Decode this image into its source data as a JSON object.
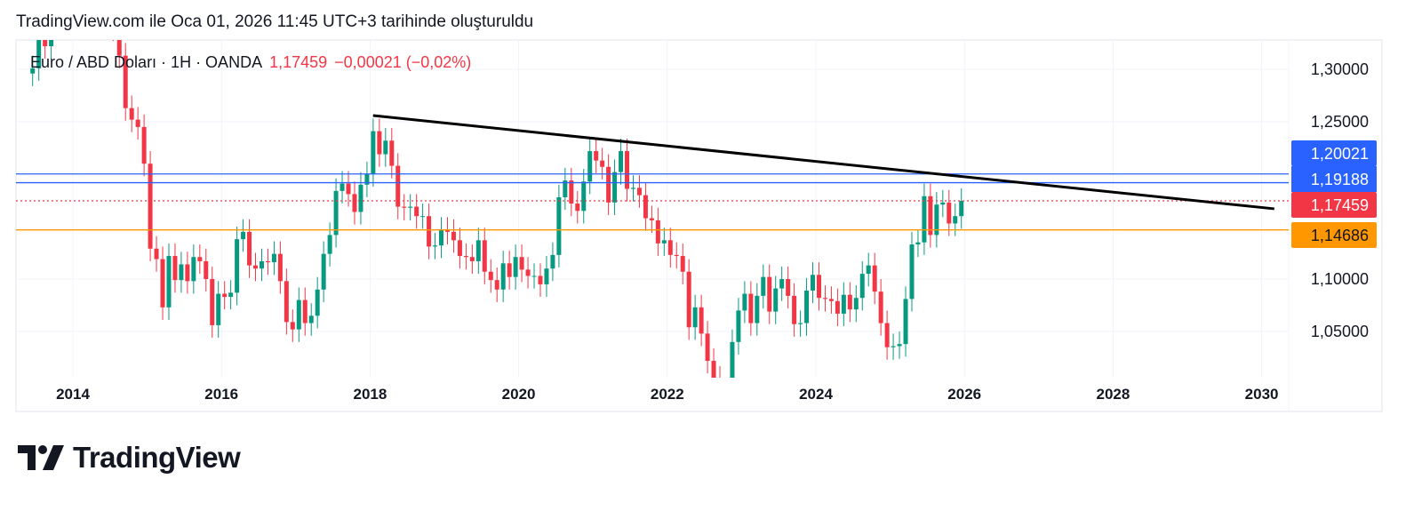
{
  "header": {
    "created_text": "TradingView.com ile Oca 01, 2026 11:45 UTC+3 tarihinde oluşturuldu"
  },
  "legend": {
    "symbol": "Euro / ABD Doları · 1H · OANDA",
    "last": "1,17459",
    "change": "−0,00021 (−0,02%)"
  },
  "logo": {
    "text": "TradingView"
  },
  "colors": {
    "up": "#089981",
    "down": "#f23645",
    "blue_line": "#2962ff",
    "orange_line": "#ff9800",
    "trendline": "#000000",
    "last_price": "#f23645"
  },
  "chart_data": {
    "type": "candlestick",
    "x_ticks": [
      "2014",
      "2016",
      "2018",
      "2020",
      "2022",
      "2024",
      "2026",
      "2028",
      "2030"
    ],
    "y_ticks": [
      "1,30000",
      "1,25000",
      "1,10000",
      "1,05000"
    ],
    "y_tick_values": [
      1.3,
      1.25,
      1.1,
      1.05
    ],
    "ylim": [
      1.01,
      1.328
    ],
    "xlim": [
      "2013-04",
      "2030-06"
    ],
    "grid": true,
    "start_month": "2013-06",
    "monthly_close": [
      1.301,
      1.33,
      1.322,
      1.352,
      1.358,
      1.359,
      1.375,
      1.349,
      1.38,
      1.377,
      1.387,
      1.363,
      1.369,
      1.339,
      1.313,
      1.263,
      1.252,
      1.245,
      1.21,
      1.129,
      1.119,
      1.073,
      1.122,
      1.099,
      1.114,
      1.098,
      1.121,
      1.117,
      1.1,
      1.056,
      1.086,
      1.083,
      1.087,
      1.138,
      1.145,
      1.113,
      1.11,
      1.117,
      1.116,
      1.124,
      1.098,
      1.059,
      1.052,
      1.08,
      1.058,
      1.065,
      1.09,
      1.124,
      1.142,
      1.184,
      1.191,
      1.181,
      1.164,
      1.19,
      1.2,
      1.241,
      1.219,
      1.232,
      1.208,
      1.169,
      1.168,
      1.169,
      1.16,
      1.16,
      1.131,
      1.132,
      1.147,
      1.145,
      1.137,
      1.122,
      1.121,
      1.117,
      1.137,
      1.107,
      1.099,
      1.09,
      1.115,
      1.102,
      1.121,
      1.109,
      1.103,
      1.103,
      1.095,
      1.11,
      1.123,
      1.178,
      1.194,
      1.172,
      1.165,
      1.193,
      1.222,
      1.213,
      1.207,
      1.173,
      1.202,
      1.222,
      1.186,
      1.187,
      1.18,
      1.158,
      1.156,
      1.134,
      1.137,
      1.123,
      1.122,
      1.107,
      1.054,
      1.073,
      1.048,
      1.022,
      1.005,
      0.98,
      0.988,
      1.04,
      1.07,
      1.086,
      1.058,
      1.084,
      1.102,
      1.069,
      1.091,
      1.1,
      1.084,
      1.057,
      1.058,
      1.089,
      1.104,
      1.082,
      1.081,
      1.079,
      1.067,
      1.085,
      1.071,
      1.082,
      1.105,
      1.113,
      1.088,
      1.058,
      1.035,
      1.036,
      1.038,
      1.081,
      1.133,
      1.135,
      1.179,
      1.142,
      1.171,
      1.173,
      1.153,
      1.16,
      1.17459
    ],
    "horizontal_lines": [
      {
        "price": 1.20021,
        "label": "1,20021",
        "color": "#2962ff",
        "style": "solid"
      },
      {
        "price": 1.19188,
        "label": "1,19188",
        "color": "#2962ff",
        "style": "solid"
      },
      {
        "price": 1.17459,
        "label": "1,17459",
        "color": "#f23645",
        "style": "dotted"
      },
      {
        "price": 1.14686,
        "label": "1,14686",
        "color": "#ff9800",
        "style": "solid"
      }
    ],
    "trendline": {
      "start": {
        "date": 2018.04,
        "price": 1.2559
      },
      "end": {
        "date": 2030.17,
        "price": 1.167
      }
    }
  }
}
